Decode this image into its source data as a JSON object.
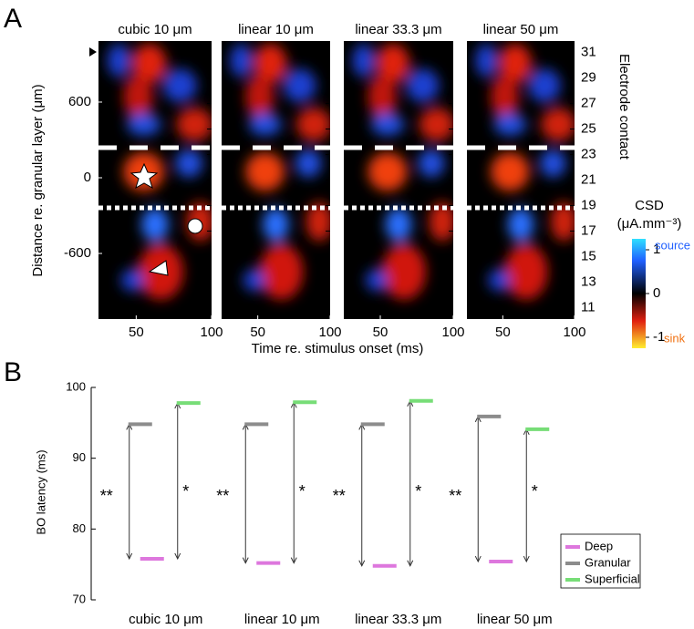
{
  "chart_data": [
    {
      "type": "heatmap",
      "panel_label": "A",
      "panels": [
        "cubic 10 μm",
        "linear 10 μm",
        "linear 33.3 μm",
        "linear 50 μm"
      ],
      "xlabel": "Time re. stimulus onset (ms)",
      "ylabel": "Distance re. granular layer (μm)",
      "y2label": "Electrode contact",
      "xlim": [
        25,
        100
      ],
      "xticks": [
        50,
        100
      ],
      "ylim": [
        -1120,
        1084
      ],
      "yticks": [
        600,
        0,
        -600
      ],
      "y2lim": [
        10.1,
        31.9
      ],
      "y2ticks": [
        31,
        29,
        27,
        25,
        23,
        21,
        19,
        17,
        15,
        13,
        11
      ],
      "colorbar": {
        "label": "CSD",
        "unit": "(μA.mm⁻³)",
        "lim": [
          -1.25,
          1.25
        ],
        "ticks": [
          1,
          0,
          -1
        ],
        "source_label": "source",
        "sink_label": "sink"
      }
    },
    {
      "type": "latency",
      "panel_label": "B",
      "categories": [
        "cubic 10 μm",
        "linear 10 μm",
        "linear 33.3 μm",
        "linear 50 μm"
      ],
      "ylabel": "BO latency (ms)",
      "ylim": [
        70,
        100
      ],
      "yticks": [
        70,
        80,
        90,
        100
      ],
      "series": [
        {
          "name": "Deep",
          "color": "#dd77dd",
          "values": [
            75.8,
            75.2,
            74.8,
            75.4
          ]
        },
        {
          "name": "Granular",
          "color": "#8c8c8c",
          "values": [
            94.8,
            94.8,
            94.8,
            95.9
          ]
        },
        {
          "name": "Superficial",
          "color": "#77dd77",
          "values": [
            97.8,
            97.9,
            98.1,
            94.1
          ]
        }
      ],
      "significance": [
        [
          "**",
          "*"
        ],
        [
          "**",
          "*"
        ],
        [
          "**",
          "*"
        ],
        [
          "**",
          "*"
        ]
      ]
    }
  ]
}
